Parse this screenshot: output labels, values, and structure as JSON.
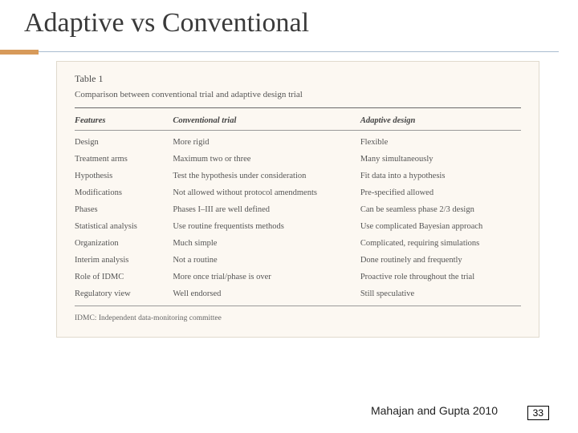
{
  "slide": {
    "title": "Adaptive vs Conventional",
    "citation": "Mahajan and Gupta 2010",
    "page_number": "33"
  },
  "table": {
    "label": "Table 1",
    "caption": "Comparison between conventional trial and adaptive design trial",
    "columns": [
      "Features",
      "Conventional trial",
      "Adaptive design"
    ],
    "column_widths": [
      "22%",
      "42%",
      "36%"
    ],
    "rows": [
      [
        "Design",
        "More rigid",
        "Flexible"
      ],
      [
        "Treatment arms",
        "Maximum two or three",
        "Many simultaneously"
      ],
      [
        "Hypothesis",
        "Test the hypothesis under consideration",
        "Fit data into a hypothesis"
      ],
      [
        "Modifications",
        "Not allowed without protocol amendments",
        "Pre-specified allowed"
      ],
      [
        "Phases",
        "Phases I–III are well defined",
        "Can be seamless phase 2/3 design"
      ],
      [
        "Statistical analysis",
        "Use routine frequentists methods",
        "Use complicated Bayesian approach"
      ],
      [
        "Organization",
        "Much simple",
        "Complicated, requiring simulations"
      ],
      [
        "Interim analysis",
        "Not a routine",
        "Done routinely and frequently"
      ],
      [
        "Role of IDMC",
        "More once trial/phase is over",
        "Proactive role throughout the trial"
      ],
      [
        "Regulatory view",
        "Well endorsed",
        "Still speculative"
      ]
    ],
    "footnote": "IDMC: Independent data-monitoring committee"
  },
  "style": {
    "accent_color": "#d79a5a",
    "rule_color": "#a9bccf",
    "panel_bg": "#fcf8f2",
    "panel_border": "#e0dacd",
    "title_fontsize": 34,
    "table_fontsize": 10.5
  }
}
